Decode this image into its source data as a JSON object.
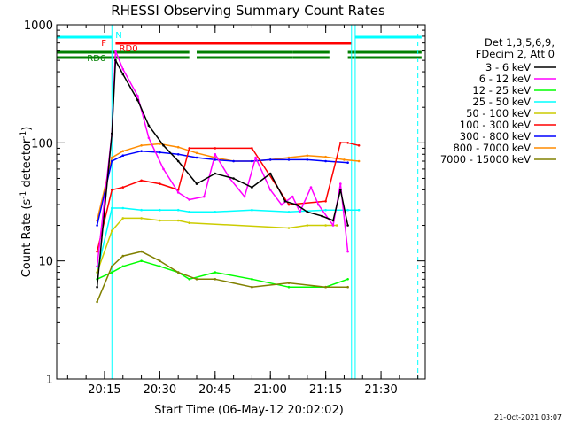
{
  "chart_data": {
    "type": "line",
    "title": "RHESSI Observing Summary Count Rates",
    "xlabel": "Start Time (06-May-12 20:02:02)",
    "ylabel": "Count Rate (s",
    "ylabel_sup1": "-1",
    "ylabel_mid": " detector",
    "ylabel_sup2": "-1",
    "ylabel_end": ")",
    "y_scale": "log",
    "ylim": [
      1,
      1000
    ],
    "xlim": [
      "20:02:02",
      "21:42:00"
    ],
    "y_ticks": [
      "1",
      "10",
      "100",
      "1000"
    ],
    "x_ticks": [
      "20:15",
      "20:30",
      "20:45",
      "21:00",
      "21:15",
      "21:30"
    ],
    "legend_header": [
      "Det 1,3,5,6,9,",
      "FDecim 2, Att 0"
    ],
    "legend_position": "right-outside",
    "timestamp": "21-Oct-2021 03:07",
    "flags": {
      "N": {
        "label": "N",
        "color": "#00ffff",
        "segments": [
          [
            "20:02",
            "20:17"
          ],
          [
            "21:23",
            "21:41"
          ]
        ]
      },
      "F": {
        "label": "F",
        "color": "#ff0000",
        "segments": [
          [
            "20:18",
            "21:22"
          ]
        ]
      },
      "RD0": {
        "label": "RD0",
        "color": "#ff0000"
      },
      "RD6": {
        "label": "RD6",
        "color": "#008000",
        "segments": [
          [
            "20:02",
            "20:38"
          ],
          [
            "20:40",
            "21:06"
          ],
          [
            "21:06",
            "21:16"
          ],
          [
            "21:21",
            "21:41"
          ]
        ]
      }
    },
    "series": [
      {
        "name": "3 - 6 keV",
        "color": "#000000",
        "x": [
          "20:13",
          "20:17",
          "20:18",
          "20:20",
          "20:24",
          "20:27",
          "20:31",
          "20:35",
          "20:40",
          "20:45",
          "20:50",
          "20:55",
          "21:00",
          "21:04",
          "21:07",
          "21:10",
          "21:14",
          "21:17",
          "21:19",
          "21:21"
        ],
        "y": [
          6,
          120,
          500,
          380,
          230,
          140,
          95,
          70,
          45,
          55,
          50,
          42,
          55,
          32,
          30,
          26,
          24,
          22,
          40,
          20
        ]
      },
      {
        "name": "6 - 12 keV",
        "color": "#ff00ff",
        "x": [
          "20:13",
          "20:17",
          "20:18",
          "20:20",
          "20:24",
          "20:27",
          "20:31",
          "20:35",
          "20:38",
          "20:42",
          "20:45",
          "20:49",
          "20:53",
          "20:56",
          "21:00",
          "21:03",
          "21:06",
          "21:08",
          "21:11",
          "21:13",
          "21:17",
          "21:19",
          "21:21"
        ],
        "y": [
          9,
          120,
          600,
          420,
          250,
          110,
          60,
          38,
          33,
          35,
          80,
          50,
          35,
          75,
          40,
          30,
          35,
          26,
          42,
          30,
          20,
          45,
          12
        ]
      },
      {
        "name": "12 - 25 keV",
        "color": "#00ff00",
        "x": [
          "20:13",
          "20:17",
          "20:20",
          "20:25",
          "20:30",
          "20:35",
          "20:38",
          "20:45",
          "20:55",
          "21:05",
          "21:15",
          "21:21"
        ],
        "y": [
          7,
          8,
          9,
          10,
          9,
          8,
          7,
          8,
          7,
          6,
          6,
          7
        ]
      },
      {
        "name": "25 - 50 keV",
        "color": "#00ffff",
        "x": [
          "20:13",
          "20:17",
          "20:20",
          "20:25",
          "20:30",
          "20:35",
          "20:38",
          "20:45",
          "20:55",
          "21:05",
          "21:15",
          "21:21",
          "21:24"
        ],
        "y": [
          8,
          28,
          28,
          27,
          27,
          27,
          26,
          26,
          27,
          26,
          27,
          27,
          27
        ]
      },
      {
        "name": "50 - 100 keV",
        "color": "#cccc00",
        "x": [
          "20:13",
          "20:17",
          "20:20",
          "20:25",
          "20:30",
          "20:35",
          "20:38",
          "21:05",
          "21:10",
          "21:15",
          "21:18"
        ],
        "y": [
          8,
          18,
          23,
          23,
          22,
          22,
          21,
          19,
          20,
          20,
          20
        ]
      },
      {
        "name": "100 - 300 keV",
        "color": "#ff0000",
        "x": [
          "20:13",
          "20:17",
          "20:20",
          "20:25",
          "20:30",
          "20:35",
          "20:38",
          "20:45",
          "20:55",
          "21:05",
          "21:15",
          "21:19",
          "21:21",
          "21:24"
        ],
        "y": [
          12,
          40,
          42,
          48,
          45,
          40,
          90,
          90,
          90,
          30,
          32,
          100,
          100,
          95
        ]
      },
      {
        "name": "300 - 800 keV",
        "color": "#0000ff",
        "x": [
          "20:13",
          "20:17",
          "20:20",
          "20:25",
          "20:30",
          "20:35",
          "20:40",
          "20:45",
          "20:50",
          "20:55",
          "21:00",
          "21:05",
          "21:10",
          "21:15",
          "21:21"
        ],
        "y": [
          20,
          70,
          78,
          85,
          83,
          80,
          75,
          72,
          70,
          70,
          72,
          72,
          72,
          70,
          68
        ]
      },
      {
        "name": "800 - 7000 keV",
        "color": "#ff8c00",
        "x": [
          "20:13",
          "20:17",
          "20:20",
          "20:25",
          "20:30",
          "20:35",
          "20:40",
          "20:45",
          "20:50",
          "20:55",
          "21:00",
          "21:05",
          "21:10",
          "21:15",
          "21:20",
          "21:24"
        ],
        "y": [
          22,
          75,
          85,
          95,
          98,
          92,
          82,
          75,
          70,
          70,
          72,
          75,
          78,
          76,
          72,
          70
        ]
      },
      {
        "name": "7000 - 15000 keV",
        "color": "#808000",
        "x": [
          "20:13",
          "20:17",
          "20:20",
          "20:25",
          "20:30",
          "20:35",
          "20:40",
          "20:45",
          "20:55",
          "21:05",
          "21:15",
          "21:21"
        ],
        "y": [
          4.5,
          9,
          11,
          12,
          10,
          8,
          7,
          7,
          6,
          6.5,
          6,
          6
        ]
      }
    ]
  }
}
